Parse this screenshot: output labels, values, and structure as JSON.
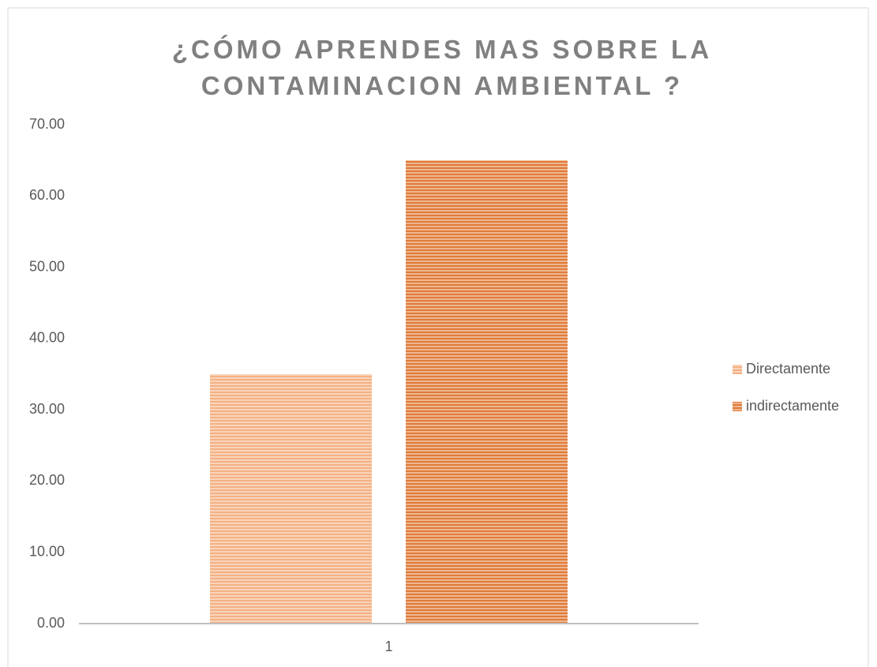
{
  "chart_data": {
    "type": "bar",
    "title": "¿CÓMO APRENDES MAS SOBRE LA CONTAMINACION AMBIENTAL ?",
    "categories": [
      "1"
    ],
    "series": [
      {
        "name": "Directamente",
        "color": "#f4b183",
        "values": [
          35
        ]
      },
      {
        "name": "indirectamente",
        "color": "#e07b39",
        "values": [
          65
        ]
      }
    ],
    "ylim": [
      0,
      70
    ],
    "yticks": [
      {
        "value": 0,
        "label": "0.00"
      },
      {
        "value": 10,
        "label": "10.00"
      },
      {
        "value": 20,
        "label": "20.00"
      },
      {
        "value": 30,
        "label": "30.00"
      },
      {
        "value": 40,
        "label": "40.00"
      },
      {
        "value": 50,
        "label": "50.00"
      },
      {
        "value": 60,
        "label": "60.00"
      },
      {
        "value": 70,
        "label": "70.00"
      }
    ],
    "grid": false,
    "legend": "right"
  }
}
